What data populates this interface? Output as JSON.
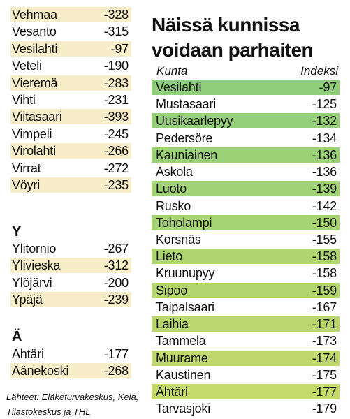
{
  "left_list": [
    {
      "name": "Vehmaa",
      "value": "-328",
      "shaded": true
    },
    {
      "name": "Vesanto",
      "value": "-315",
      "shaded": false
    },
    {
      "name": "Vesilahti",
      "value": "-97",
      "shaded": true
    },
    {
      "name": "Veteli",
      "value": "-190",
      "shaded": false
    },
    {
      "name": "Vieremä",
      "value": "-283",
      "shaded": true
    },
    {
      "name": "Vihti",
      "value": "-231",
      "shaded": false
    },
    {
      "name": "Viitasaari",
      "value": "-393",
      "shaded": true
    },
    {
      "name": "Vimpeli",
      "value": "-245",
      "shaded": false
    },
    {
      "name": "Virolahti",
      "value": "-266",
      "shaded": true
    },
    {
      "name": "Virrat",
      "value": "-272",
      "shaded": false
    },
    {
      "name": "Vöyri",
      "value": "-235",
      "shaded": true
    }
  ],
  "section_y": {
    "letter": "Y",
    "rows": [
      {
        "name": "Ylitornio",
        "value": "-267",
        "shaded": false
      },
      {
        "name": "Ylivieska",
        "value": "-312",
        "shaded": true
      },
      {
        "name": "Ylöjärvi",
        "value": "-200",
        "shaded": false
      },
      {
        "name": "Ypäjä",
        "value": "-239",
        "shaded": true
      }
    ]
  },
  "section_a": {
    "letter": "Ä",
    "rows": [
      {
        "name": "Ähtäri",
        "value": "-177",
        "shaded": false
      },
      {
        "name": "Äänekoski",
        "value": "-268",
        "shaded": true
      }
    ]
  },
  "source": "Lähteet: Eläketurvakeskus, Kela, Tilastokeskus ja THL",
  "title": "Näissä kunnissa voidaan parhaiten",
  "columns": {
    "name": "Kunta",
    "value": "Indeksi"
  },
  "colors": {
    "left_shade": "#f8edc9",
    "top_gradient_start": "#8fcf7a",
    "top_gradient_end": "#c9da6a"
  },
  "top_list": [
    {
      "name": "Vesilahti",
      "value": "-97",
      "shaded": true
    },
    {
      "name": "Mustasaari",
      "value": "-125",
      "shaded": false
    },
    {
      "name": "Uusikaarlepyy",
      "value": "-132",
      "shaded": true
    },
    {
      "name": "Pedersöre",
      "value": "-134",
      "shaded": false
    },
    {
      "name": "Kauniainen",
      "value": "-136",
      "shaded": true
    },
    {
      "name": "Askola",
      "value": "-136",
      "shaded": false
    },
    {
      "name": "Luoto",
      "value": "-139",
      "shaded": true
    },
    {
      "name": "Rusko",
      "value": "-142",
      "shaded": false
    },
    {
      "name": "Toholampi",
      "value": "-150",
      "shaded": true
    },
    {
      "name": "Korsnäs",
      "value": "-155",
      "shaded": false
    },
    {
      "name": "Lieto",
      "value": "-158",
      "shaded": true
    },
    {
      "name": "Kruunupyy",
      "value": "-158",
      "shaded": false
    },
    {
      "name": "Sipoo",
      "value": "-159",
      "shaded": true
    },
    {
      "name": "Taipalsaari",
      "value": "-167",
      "shaded": false
    },
    {
      "name": "Laihia",
      "value": "-171",
      "shaded": true
    },
    {
      "name": "Tammela",
      "value": "-173",
      "shaded": false
    },
    {
      "name": "Muurame",
      "value": "-174",
      "shaded": true
    },
    {
      "name": "Kaustinen",
      "value": "-175",
      "shaded": false
    },
    {
      "name": "Ähtäri",
      "value": "-177",
      "shaded": true
    },
    {
      "name": "Tarvasjoki",
      "value": "-179",
      "shaded": false
    }
  ]
}
